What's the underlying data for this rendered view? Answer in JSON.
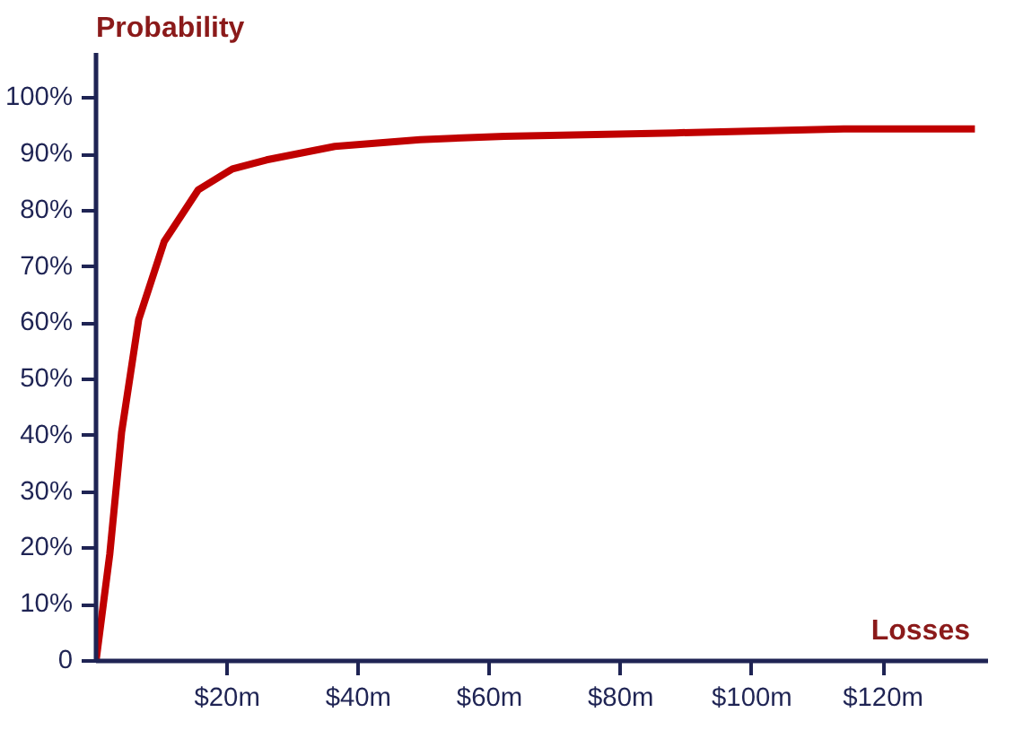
{
  "chart_data": {
    "type": "line",
    "xlabel": "Losses",
    "ylabel": "Probability",
    "x": [
      0,
      2.1,
      3.9,
      6.5,
      10.4,
      15.6,
      20.8,
      26,
      36.4,
      49.4,
      62.3,
      88.3,
      114,
      134
    ],
    "series": [
      {
        "color": "#c00000",
        "values": [
          0,
          19,
          40.6,
          60.6,
          74.5,
          83.7,
          87.4,
          89,
          91.4,
          92.6,
          93.2,
          93.8,
          94.5,
          94.5
        ]
      }
    ],
    "xlim": [
      0,
      136
    ],
    "ylim": [
      0,
      108
    ],
    "xticks": [
      {
        "value": 20,
        "label": "$20m"
      },
      {
        "value": 40,
        "label": "$40m"
      },
      {
        "value": 60,
        "label": "$60m"
      },
      {
        "value": 80,
        "label": "$80m"
      },
      {
        "value": 100,
        "label": "$100m"
      },
      {
        "value": 120,
        "label": "$120m"
      }
    ],
    "yticks": [
      0,
      {
        "value": 10,
        "label": "10%"
      },
      {
        "value": 20,
        "label": "20%"
      },
      {
        "value": 30,
        "label": "30%"
      },
      {
        "value": 40,
        "label": "40%"
      },
      {
        "value": 50,
        "label": "50%"
      },
      {
        "value": 60,
        "label": "60%"
      },
      {
        "value": 70,
        "label": "70%"
      },
      {
        "value": 80,
        "label": "80%"
      },
      {
        "value": 90,
        "label": "90%"
      },
      {
        "value": 100,
        "label": "100%"
      }
    ],
    "grid": false,
    "marker": "none",
    "line_style": "solid"
  }
}
